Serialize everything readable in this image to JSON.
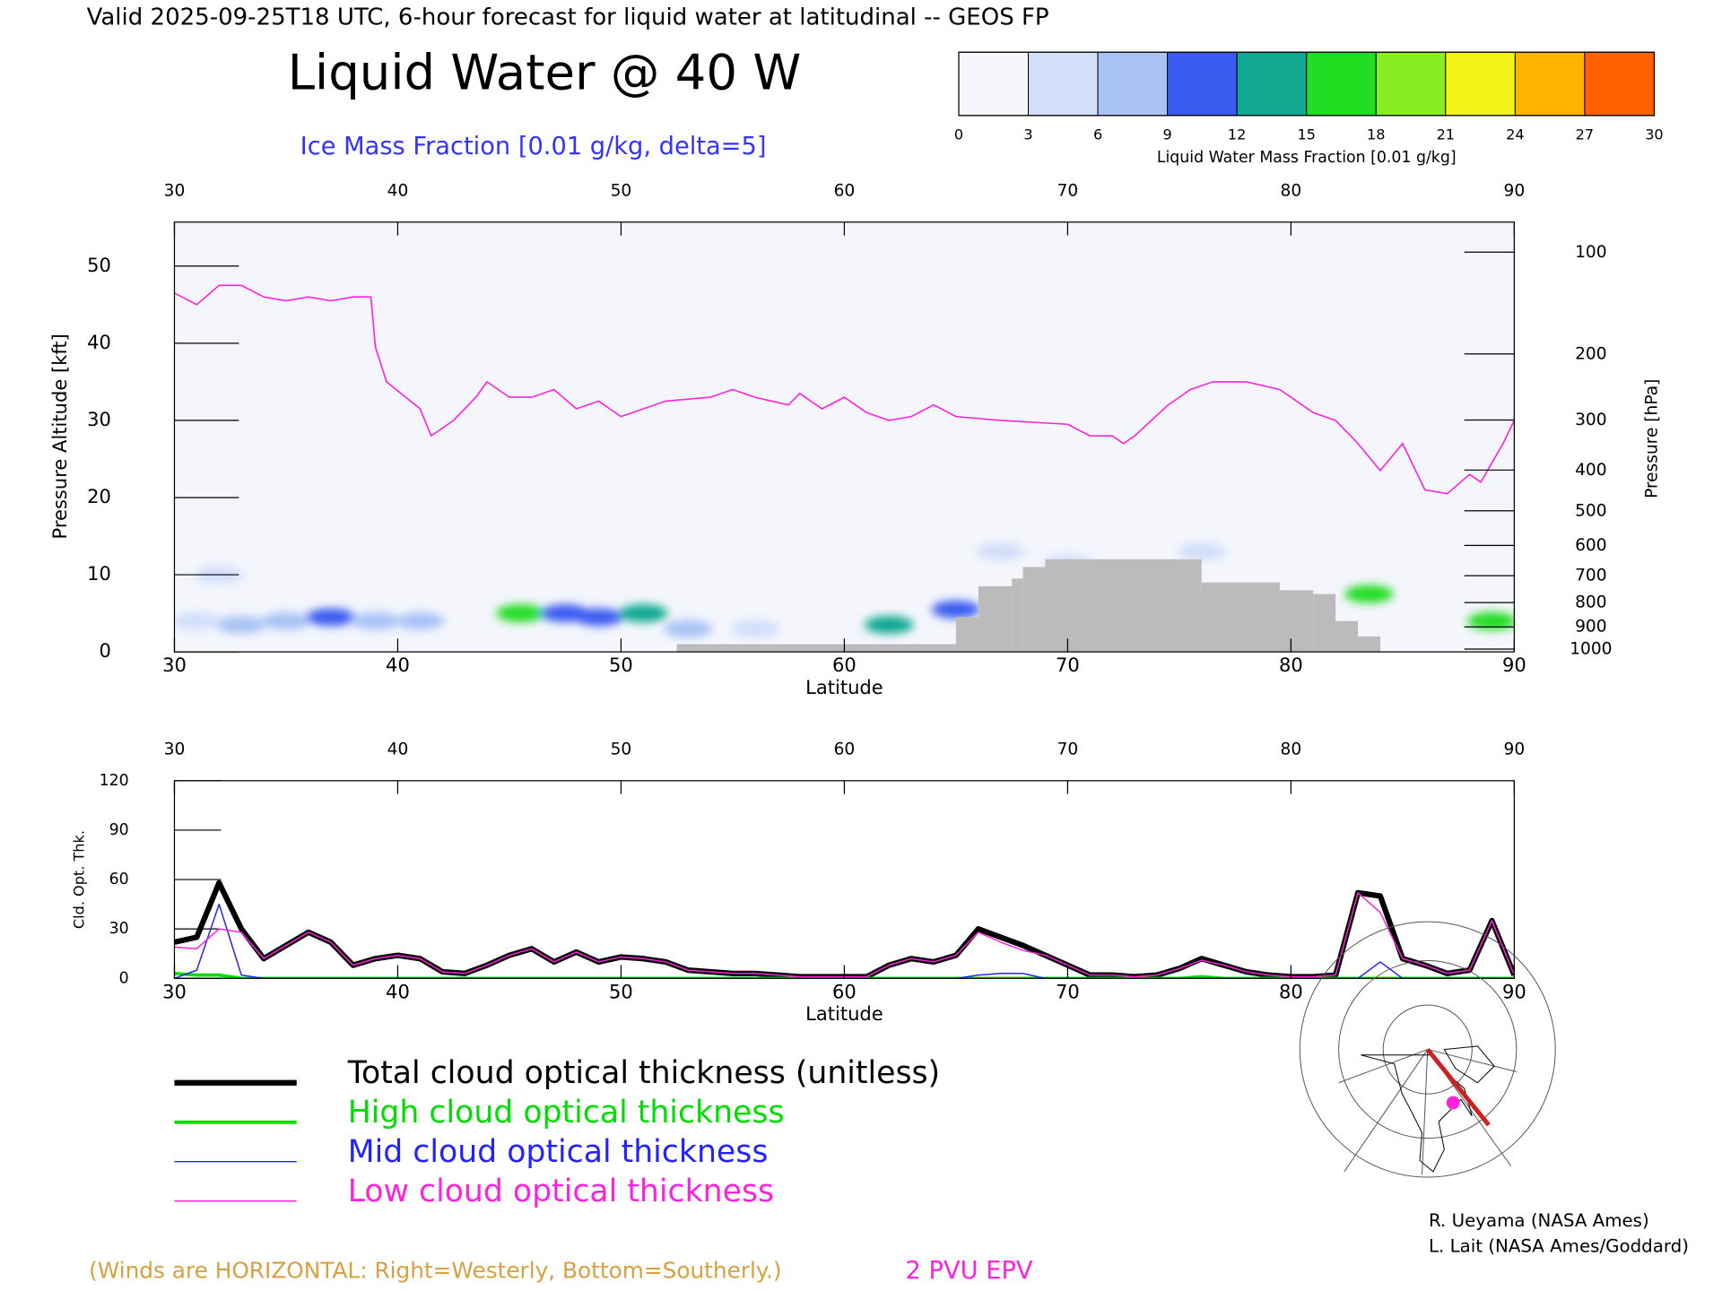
{
  "header": {
    "title": "Valid 2025-09-25T18 UTC, 6-hour forecast for liquid water at latitudinal -- GEOS FP"
  },
  "chart_data": [
    {
      "type": "cross-section",
      "title": "Liquid Water @ 40 W",
      "subtitle": "Ice Mass Fraction [0.01 g/kg, delta=5]",
      "xlabel": "Latitude",
      "ylabel": "Pressure Altitude [kft]",
      "y2label": "Pressure [hPa]",
      "xlim": [
        30,
        90
      ],
      "xticks": [
        30,
        40,
        50,
        60,
        70,
        80,
        90
      ],
      "ylim": [
        0,
        55.7
      ],
      "yticks": [
        0,
        10,
        20,
        30,
        40,
        50
      ],
      "y2scale": "pressure",
      "y2ticks": [
        100,
        200,
        300,
        400,
        500,
        600,
        700,
        800,
        900,
        1000
      ],
      "colorbar": {
        "label": "Liquid Water Mass Fraction [0.01 g/kg]",
        "ticks": [
          0,
          3,
          6,
          9,
          12,
          15,
          18,
          21,
          24,
          27,
          30
        ],
        "colors": [
          "#f4f6fc",
          "#d2dffa",
          "#a9c3f6",
          "#3a5cf0",
          "#10a890",
          "#22dd22",
          "#88ee22",
          "#f4f41a",
          "#ffb400",
          "#ff6000"
        ]
      },
      "cells": {
        "x": [
          31,
          33,
          35,
          37,
          39,
          41,
          45.5,
          47.5,
          49,
          51,
          53,
          56,
          62,
          65,
          83.5,
          89,
          32,
          70,
          76,
          67
        ],
        "y": [
          4,
          3.5,
          4,
          4.5,
          4,
          4,
          5,
          5,
          4.5,
          5,
          3,
          3,
          3.5,
          5.5,
          7.5,
          4,
          10,
          11.5,
          13,
          13
        ],
        "values": [
          5,
          6,
          7,
          9,
          8,
          8,
          15,
          11,
          10,
          12,
          6,
          5,
          12,
          10,
          17,
          16,
          4,
          5,
          5,
          4
        ]
      },
      "terrain": {
        "color": "#bbbbbb",
        "bins": [
          52.5,
          65,
          66,
          67.5,
          68,
          69,
          76,
          79.5,
          81,
          82,
          83,
          84
        ],
        "values": [
          1,
          4.5,
          8.5,
          9.5,
          11,
          12,
          9,
          8,
          7.5,
          4,
          2
        ]
      },
      "epv": {
        "name": "2 PVU EPV",
        "color": "#ff22dd",
        "x": [
          30,
          31,
          32,
          33,
          34,
          35,
          36,
          37,
          38,
          38.8,
          39,
          39.5,
          41,
          41.5,
          42.5,
          43.5,
          44,
          45,
          46,
          47,
          48,
          49,
          50,
          52,
          54,
          55,
          56,
          57.5,
          58,
          59,
          60,
          61,
          62,
          63,
          64,
          65,
          67,
          70,
          71,
          72,
          72.5,
          73,
          74.5,
          75.5,
          76.5,
          78,
          79.5,
          81,
          82,
          83,
          84,
          85,
          86,
          87,
          88,
          88.5,
          89.5,
          90
        ],
        "values": [
          46.5,
          45,
          47.5,
          47.5,
          46,
          45.5,
          46,
          45.5,
          46,
          46,
          39.5,
          35,
          31.5,
          28,
          30,
          33,
          35,
          33,
          33,
          34,
          31.5,
          32.5,
          30.5,
          32.5,
          33,
          34,
          33,
          32,
          33.5,
          31.5,
          33,
          31,
          30,
          30.5,
          32,
          30.5,
          30,
          29.5,
          28,
          28,
          27,
          28,
          32,
          34,
          35,
          35,
          34,
          31,
          30,
          27,
          23.5,
          27,
          21,
          20.5,
          23,
          22,
          27,
          30
        ]
      }
    },
    {
      "type": "line",
      "xlabel": "Latitude",
      "ylabel": "Cld. Opt. Thk.",
      "xlim": [
        30,
        90
      ],
      "xticks": [
        30,
        40,
        50,
        60,
        70,
        80,
        90
      ],
      "ylim": [
        0,
        120
      ],
      "yticks": [
        0,
        30,
        60,
        90,
        120
      ],
      "x": [
        30,
        31,
        32,
        33,
        34,
        35,
        36,
        37,
        38,
        39,
        40,
        41,
        42,
        43,
        44,
        45,
        46,
        47,
        48,
        49,
        50,
        51,
        52,
        53,
        54,
        55,
        56,
        57,
        58,
        59,
        60,
        61,
        62,
        63,
        64,
        65,
        66,
        67,
        68,
        69,
        70,
        71,
        72,
        73,
        74,
        75,
        76,
        77,
        78,
        79,
        80,
        81,
        82,
        83,
        84,
        85,
        86,
        87,
        88,
        89,
        90
      ],
      "series": [
        {
          "name": "Total cloud optical thickness (unitless)",
          "color": "#000000",
          "line_width": 5,
          "values": [
            22,
            25,
            58,
            30,
            12,
            20,
            28,
            22,
            8,
            12,
            14,
            12,
            4,
            3,
            8,
            14,
            18,
            10,
            16,
            10,
            13,
            12,
            10,
            5,
            4,
            3,
            3,
            2,
            1,
            1,
            1,
            1,
            8,
            12,
            10,
            14,
            30,
            25,
            20,
            14,
            8,
            2,
            2,
            1,
            2,
            6,
            12,
            8,
            4,
            2,
            1,
            1,
            2,
            52,
            50,
            12,
            8,
            3,
            5,
            35,
            2
          ]
        },
        {
          "name": "High cloud optical thickness",
          "color": "#00dd00",
          "line_width": 3,
          "values": [
            3,
            2,
            2,
            0,
            0,
            0,
            0,
            0,
            0,
            0,
            0,
            0,
            0,
            0,
            0,
            0,
            0,
            0,
            0,
            0,
            0,
            0,
            0,
            0,
            0,
            0,
            0,
            0,
            0,
            0,
            0,
            0,
            0,
            0,
            0,
            0,
            0,
            0,
            0,
            0,
            0,
            0,
            0,
            0,
            0,
            0,
            1,
            0,
            0,
            0,
            0,
            0,
            0,
            0,
            0,
            0,
            0,
            0,
            0,
            0,
            0
          ]
        },
        {
          "name": "Mid cloud optical thickness",
          "color": "#2222ff",
          "line_width": 1.2,
          "values": [
            0,
            5,
            45,
            2,
            0,
            0,
            0,
            0,
            0,
            0,
            0,
            0,
            0,
            0,
            0,
            0,
            0,
            0,
            0,
            0,
            0,
            0,
            0,
            0,
            0,
            0,
            0,
            0,
            0,
            0,
            0,
            0,
            0,
            0,
            0,
            0,
            2,
            3,
            3,
            0,
            0,
            0,
            0,
            0,
            0,
            0,
            0,
            0,
            0,
            0,
            0,
            0,
            0,
            0,
            10,
            0,
            0,
            0,
            0,
            0,
            0
          ]
        },
        {
          "name": "Low cloud optical thickness",
          "color": "#ff22dd",
          "line_width": 1.2,
          "values": [
            19,
            18,
            30,
            28,
            12,
            20,
            28,
            22,
            8,
            12,
            14,
            12,
            4,
            3,
            8,
            14,
            18,
            10,
            16,
            10,
            13,
            12,
            10,
            5,
            4,
            3,
            3,
            2,
            1,
            1,
            1,
            1,
            8,
            12,
            10,
            14,
            28,
            22,
            17,
            14,
            8,
            2,
            2,
            1,
            2,
            6,
            11,
            8,
            4,
            2,
            1,
            1,
            2,
            52,
            40,
            12,
            8,
            3,
            5,
            35,
            2
          ]
        }
      ]
    }
  ],
  "notes": {
    "winds": "(Winds are HORIZONTAL: Right=Westerly, Bottom=Southerly.)"
  },
  "credits": [
    "R. Ueyama (NASA Ames)",
    "L. Lait (NASA Ames/Goddard)"
  ]
}
